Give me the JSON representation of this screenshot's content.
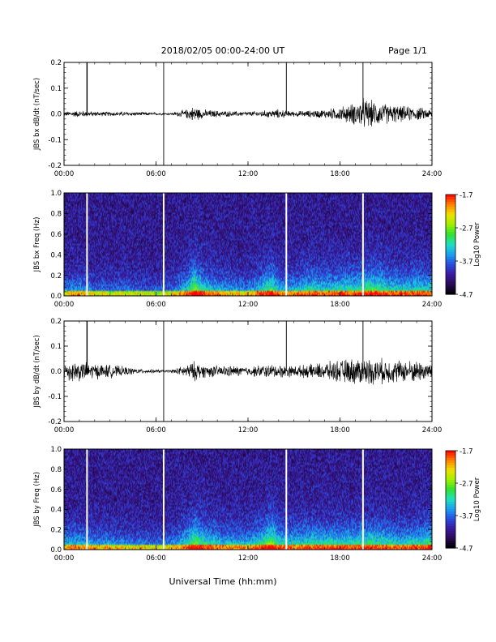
{
  "header": {
    "title": "2018/02/05  00:00-24:00 UT",
    "page": "Page 1/1"
  },
  "footer": {
    "xlabel": "Universal Time (hh:mm)"
  },
  "colors": {
    "trace": "#000000",
    "data_gap": "#ffffff",
    "colormap": [
      "#000000",
      "#2a0a55",
      "#3b1aa0",
      "#2a4de0",
      "#1aa0f0",
      "#20e0c0",
      "#30e030",
      "#a0f000",
      "#f0e000",
      "#ff8000",
      "#ff0000"
    ]
  },
  "chart_data": [
    {
      "type": "line",
      "ylabel": "JBS bx dB/dt (nT/sec)",
      "xlim": [
        0,
        24
      ],
      "ylim": [
        -0.2,
        0.2
      ],
      "yticks": [
        "0.2",
        "0.1",
        "0.0",
        "-0.1",
        "-0.2"
      ],
      "xticks": [
        "00:00",
        "06:00",
        "12:00",
        "18:00",
        "24:00"
      ],
      "spikes_hours": [
        1.5,
        6.5,
        14.5,
        19.5
      ],
      "envelope": {
        "x": [
          0,
          1,
          2,
          4,
          6,
          6.5,
          7,
          8,
          8.5,
          9,
          10,
          11,
          12,
          13,
          14,
          15,
          16,
          17,
          18,
          19,
          19.5,
          20,
          21,
          22,
          23,
          24
        ],
        "amplitude": [
          0.01,
          0.015,
          0.01,
          0.01,
          0.006,
          0.005,
          0.005,
          0.02,
          0.035,
          0.02,
          0.015,
          0.012,
          0.01,
          0.015,
          0.02,
          0.012,
          0.015,
          0.02,
          0.03,
          0.05,
          0.07,
          0.06,
          0.045,
          0.035,
          0.03,
          0.02
        ]
      }
    },
    {
      "type": "heatmap",
      "ylabel": "JBS bx Freq (Hz)",
      "xlim": [
        0,
        24
      ],
      "ylim": [
        0,
        1.0
      ],
      "yticks": [
        "1.0",
        "0.8",
        "0.6",
        "0.4",
        "0.2",
        "0.0"
      ],
      "xticks": [
        "00:00",
        "06:00",
        "12:00",
        "18:00",
        "24:00"
      ],
      "gap_hours": [
        1.5,
        6.5,
        14.5,
        19.5
      ],
      "colorbar": {
        "label": "Log10 Power",
        "min": -4.7,
        "max": -1.7,
        "ticks": [
          "-1.7",
          "-2.7",
          "-3.7",
          "-4.7"
        ]
      },
      "activity": {
        "x": [
          0,
          1,
          2,
          4,
          6,
          7,
          8,
          8.5,
          9,
          10,
          11,
          12,
          13,
          13.5,
          14,
          15,
          16,
          17,
          18,
          19,
          20,
          21,
          22,
          23,
          24
        ],
        "level": [
          0.35,
          0.4,
          0.3,
          0.3,
          0.25,
          0.3,
          0.5,
          0.75,
          0.55,
          0.45,
          0.4,
          0.35,
          0.55,
          0.65,
          0.45,
          0.45,
          0.55,
          0.5,
          0.55,
          0.55,
          0.65,
          0.55,
          0.5,
          0.55,
          0.5
        ]
      }
    },
    {
      "type": "line",
      "ylabel": "JBS by dB/dt (nT/sec)",
      "xlim": [
        0,
        24
      ],
      "ylim": [
        -0.2,
        0.2
      ],
      "yticks": [
        "0.2",
        "0.1",
        "0.0",
        "-0.1",
        "-0.2"
      ],
      "xticks": [
        "00:00",
        "06:00",
        "12:00",
        "18:00",
        "24:00"
      ],
      "spikes_hours": [
        1.5,
        6.5,
        14.5,
        19.5
      ],
      "envelope": {
        "x": [
          0,
          0.5,
          1,
          2,
          3,
          4,
          5,
          6,
          6.5,
          7,
          8,
          8.5,
          9,
          10,
          11,
          12,
          13,
          14,
          15,
          16,
          17,
          18,
          19,
          20,
          21,
          22,
          23,
          24
        ],
        "amplitude": [
          0.04,
          0.05,
          0.045,
          0.035,
          0.03,
          0.02,
          0.01,
          0.008,
          0.006,
          0.007,
          0.03,
          0.045,
          0.03,
          0.025,
          0.025,
          0.02,
          0.03,
          0.03,
          0.025,
          0.03,
          0.04,
          0.05,
          0.06,
          0.06,
          0.055,
          0.05,
          0.05,
          0.04
        ]
      }
    },
    {
      "type": "heatmap",
      "ylabel": "JBS by Freq (Hz)",
      "xlim": [
        0,
        24
      ],
      "ylim": [
        0,
        1.0
      ],
      "yticks": [
        "1.0",
        "0.8",
        "0.6",
        "0.4",
        "0.2",
        "0.0"
      ],
      "xticks": [
        "00:00",
        "06:00",
        "12:00",
        "18:00",
        "24:00"
      ],
      "gap_hours": [
        1.5,
        6.5,
        14.5,
        19.5
      ],
      "colorbar": {
        "label": "Log10 Power",
        "min": -4.7,
        "max": -1.7,
        "ticks": [
          "-1.7",
          "-2.7",
          "-3.7",
          "-4.7"
        ]
      },
      "activity": {
        "x": [
          0,
          1,
          2,
          4,
          6,
          7,
          8,
          8.5,
          9,
          10,
          11,
          12,
          13,
          13.5,
          14,
          15,
          16,
          17,
          18,
          19,
          20,
          21,
          22,
          23,
          24
        ],
        "level": [
          0.45,
          0.45,
          0.4,
          0.35,
          0.3,
          0.35,
          0.55,
          0.7,
          0.6,
          0.5,
          0.45,
          0.45,
          0.6,
          0.75,
          0.55,
          0.5,
          0.55,
          0.55,
          0.55,
          0.55,
          0.6,
          0.55,
          0.5,
          0.55,
          0.6
        ]
      }
    }
  ]
}
